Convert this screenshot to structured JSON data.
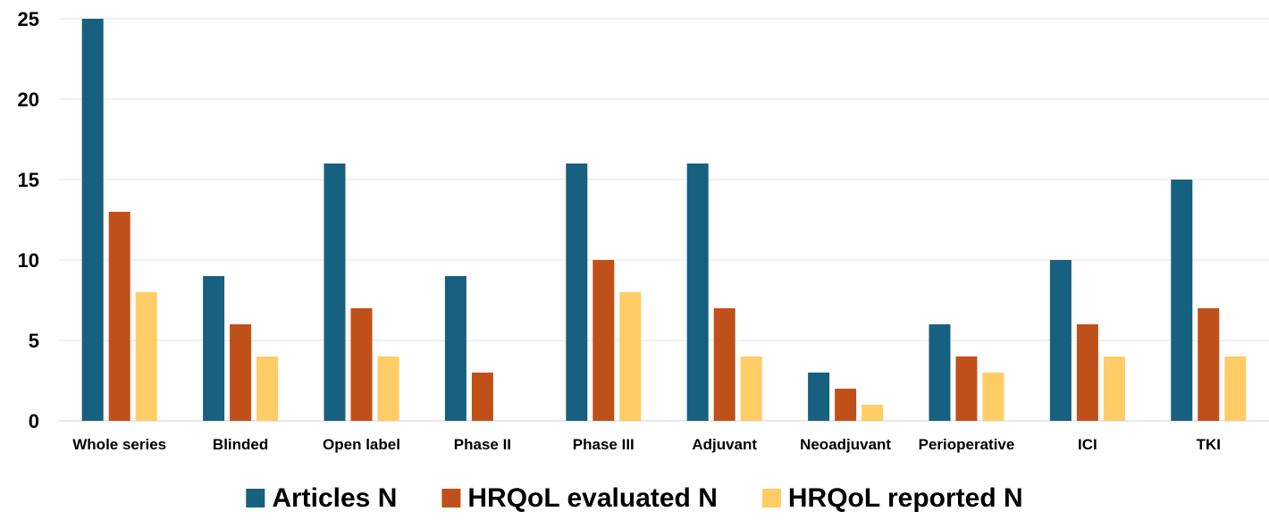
{
  "chart_data": {
    "type": "bar",
    "title": "",
    "xlabel": "",
    "ylabel": "",
    "ylim": [
      0,
      25
    ],
    "yticks": [
      0,
      5,
      10,
      15,
      20,
      25
    ],
    "grid": true,
    "legend_position": "bottom",
    "categories": [
      "Whole series",
      "Blinded",
      "Open label",
      "Phase II",
      "Phase III",
      "Adjuvant",
      "Neoadjuvant",
      "Perioperative",
      "ICI",
      "TKI"
    ],
    "series": [
      {
        "name": "Articles N",
        "color": "#17607F",
        "values": [
          25,
          9,
          16,
          9,
          16,
          16,
          3,
          6,
          10,
          15
        ]
      },
      {
        "name": "HRQoL evaluated N",
        "color": "#C0501A",
        "values": [
          13,
          6,
          7,
          3,
          10,
          7,
          2,
          4,
          6,
          7
        ]
      },
      {
        "name": "HRQoL reported N",
        "color": "#FFCC66",
        "values": [
          8,
          4,
          4,
          0,
          8,
          4,
          1,
          3,
          4,
          4
        ]
      }
    ]
  }
}
